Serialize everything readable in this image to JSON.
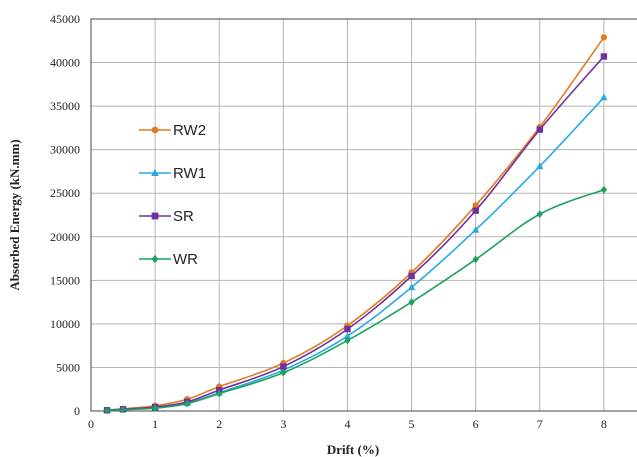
{
  "chart_data": {
    "type": "line",
    "xlabel": "Drift (%)",
    "ylabel": "Absorbed Energy (kN.mm)",
    "xlim": [
      0,
      9
    ],
    "ylim": [
      0,
      45000
    ],
    "xticks": [
      0,
      1,
      2,
      3,
      4,
      5,
      6,
      7,
      8,
      9
    ],
    "yticks": [
      0,
      5000,
      10000,
      15000,
      20000,
      25000,
      30000,
      35000,
      40000,
      45000
    ],
    "grid": true,
    "legend_position": "left-middle",
    "series": [
      {
        "name": "RW2",
        "color": "#E07B22",
        "marker": "circle",
        "x": [
          0.25,
          0.5,
          1,
          1.5,
          2,
          3,
          4,
          5,
          6,
          7,
          8
        ],
        "y": [
          100,
          250,
          600,
          1350,
          2800,
          5500,
          9800,
          15900,
          23600,
          32600,
          42900
        ]
      },
      {
        "name": "RW1",
        "color": "#29A9E0",
        "marker": "triangle",
        "x": [
          0.25,
          0.5,
          1,
          1.5,
          2,
          3,
          4,
          5,
          6,
          7,
          8
        ],
        "y": [
          80,
          180,
          380,
          900,
          2100,
          4700,
          8600,
          14200,
          20800,
          28100,
          36000
        ]
      },
      {
        "name": "SR",
        "color": "#7030A0",
        "marker": "square",
        "x": [
          0.25,
          0.5,
          1,
          1.5,
          2,
          3,
          4,
          5,
          6,
          7,
          8
        ],
        "y": [
          90,
          200,
          450,
          1050,
          2400,
          5100,
          9400,
          15500,
          23000,
          32300,
          40700
        ]
      },
      {
        "name": "WR",
        "color": "#1FA060",
        "marker": "diamond",
        "x": [
          0.25,
          0.5,
          1,
          1.5,
          2,
          3,
          4,
          5,
          6,
          7,
          8
        ],
        "y": [
          70,
          150,
          330,
          850,
          2000,
          4400,
          8100,
          12500,
          17400,
          22600,
          25400
        ]
      }
    ]
  }
}
